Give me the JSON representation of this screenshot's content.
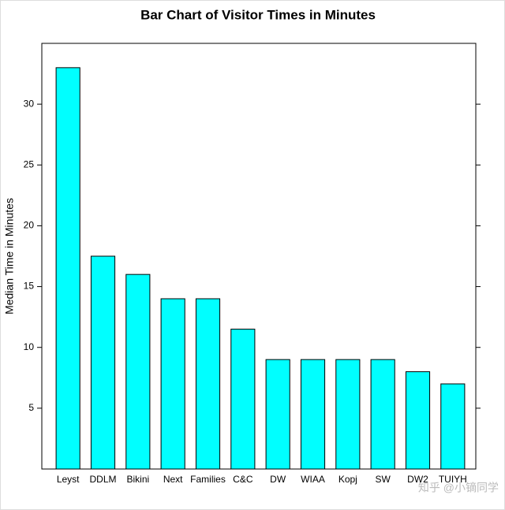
{
  "chart_data": {
    "type": "bar",
    "title": "Bar Chart of Visitor Times in Minutes",
    "y_label": "Median Time in Minutes",
    "categories": [
      "Leyst",
      "DDLM",
      "Bikini",
      "Next",
      "Families",
      "C&C",
      "DW",
      "WIAA",
      "Kopj",
      "SW",
      "DW2",
      "TUIYH"
    ],
    "values": [
      33,
      17.5,
      16,
      14,
      14,
      11.5,
      9,
      9,
      9,
      9,
      8,
      7
    ],
    "color": "#00ffff",
    "ylim": [
      0,
      35
    ],
    "yticks": [
      5,
      10,
      15,
      20,
      25,
      30
    ],
    "grid": false
  },
  "watermark": "知乎 @小镝同学"
}
